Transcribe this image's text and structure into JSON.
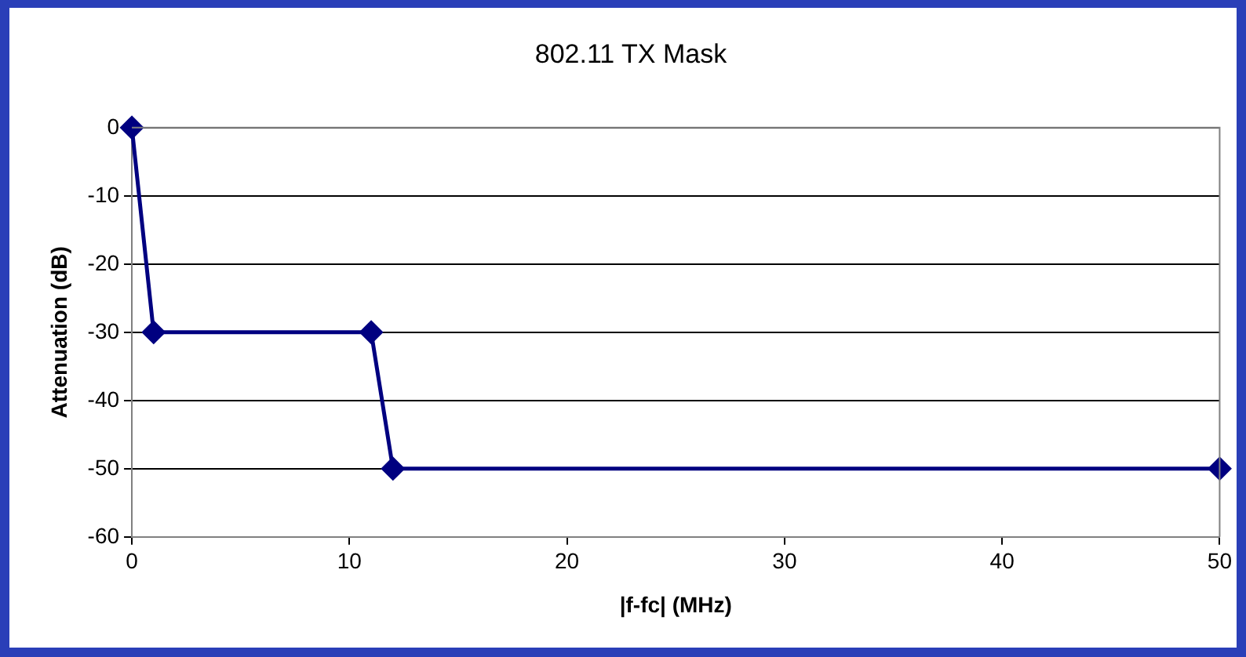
{
  "chart_data": {
    "type": "line",
    "title": "802.11 TX Mask",
    "xlabel": "|f-fc| (MHz)",
    "ylabel": "Attenuation (dB)",
    "x": [
      0,
      1,
      11,
      12,
      50
    ],
    "series": [
      {
        "color": "#000080",
        "values": [
          0,
          -30,
          -30,
          -50,
          -50
        ]
      }
    ],
    "xlim": [
      0,
      50
    ],
    "xticks": [
      0,
      10,
      20,
      30,
      40,
      50
    ],
    "ylim": [
      -60,
      0
    ],
    "yticks": [
      -60,
      -50,
      -40,
      -30,
      -20,
      -10,
      0
    ],
    "grid": "y",
    "legend": false,
    "marker": "diamond",
    "line_style": "solid"
  }
}
